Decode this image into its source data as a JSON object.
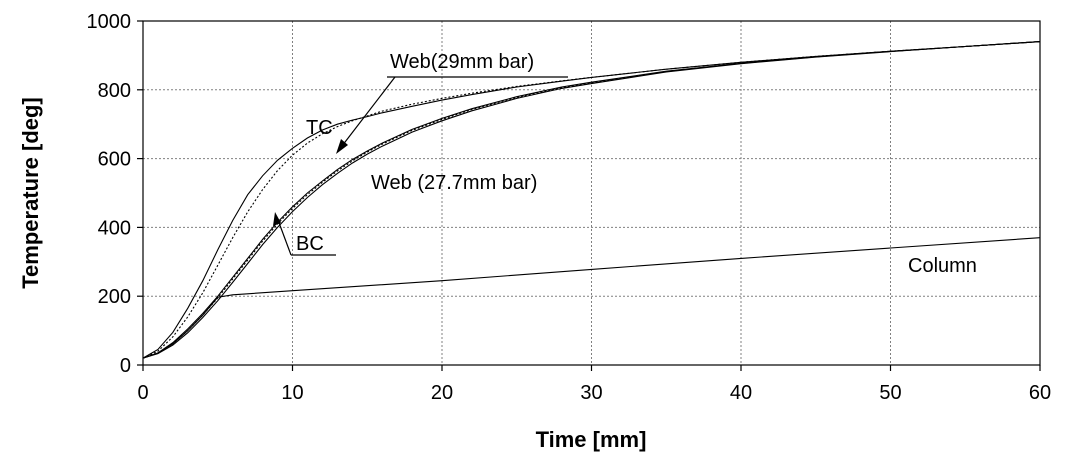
{
  "chart_data": {
    "type": "line",
    "title": "",
    "xlabel": "Time [mm]",
    "ylabel": "Temperature [deg]",
    "xlim": [
      0,
      60
    ],
    "ylim": [
      0,
      1000
    ],
    "xticks": [
      0,
      10,
      20,
      30,
      40,
      50,
      60
    ],
    "yticks": [
      0,
      200,
      400,
      600,
      800,
      1000
    ],
    "grid": true,
    "legend": "none",
    "series": [
      {
        "name": "TC",
        "style": "solid",
        "x": [
          0,
          1,
          2,
          3,
          4,
          5,
          6,
          7,
          8,
          9,
          10,
          11,
          12,
          13,
          14,
          15,
          16,
          18,
          20,
          22,
          25,
          28,
          30,
          35,
          40,
          45,
          50,
          55,
          60
        ],
        "y": [
          20,
          45,
          95,
          165,
          245,
          335,
          420,
          495,
          550,
          595,
          630,
          660,
          683,
          700,
          712,
          722,
          733,
          752,
          770,
          786,
          808,
          825,
          836,
          860,
          880,
          897,
          912,
          926,
          940
        ]
      },
      {
        "name": "",
        "style": "dotted",
        "x": [
          0,
          1,
          2,
          3,
          4,
          5,
          6,
          7,
          8,
          9,
          10,
          11,
          12,
          13,
          14,
          15,
          16,
          18,
          20,
          22,
          25,
          28,
          30,
          35,
          40,
          45,
          50,
          55,
          60
        ],
        "y": [
          20,
          40,
          82,
          140,
          210,
          290,
          370,
          445,
          510,
          565,
          610,
          645,
          672,
          693,
          710,
          724,
          738,
          758,
          775,
          790,
          810,
          826,
          836,
          860,
          880,
          897,
          912,
          926,
          940
        ]
      },
      {
        "name": "BC",
        "style": "solid",
        "x": [
          0,
          1,
          2,
          3,
          4,
          5,
          6,
          7,
          8,
          9,
          10,
          11,
          12,
          13,
          14,
          15,
          16,
          18,
          20,
          22,
          25,
          28,
          30,
          35,
          40,
          45,
          50,
          55,
          60
        ],
        "y": [
          20,
          35,
          65,
          105,
          150,
          200,
          255,
          310,
          365,
          415,
          460,
          500,
          535,
          568,
          597,
          622,
          645,
          685,
          717,
          745,
          780,
          808,
          822,
          854,
          877,
          896,
          912,
          926,
          940
        ]
      },
      {
        "name": "Web(29mm bar)",
        "style": "dotted",
        "x": [
          0,
          1,
          2,
          3,
          4,
          5,
          6,
          7,
          8,
          9,
          10,
          11,
          12,
          13,
          14,
          15,
          16,
          18,
          20,
          22,
          25,
          28,
          30,
          35,
          40,
          45,
          50,
          55,
          60
        ],
        "y": [
          20,
          35,
          62,
          100,
          145,
          195,
          250,
          305,
          360,
          410,
          455,
          495,
          531,
          564,
          593,
          619,
          642,
          682,
          714,
          743,
          778,
          806,
          820,
          853,
          877,
          896,
          912,
          926,
          940
        ]
      },
      {
        "name": "Web (27.7mm bar)",
        "style": "solid",
        "x": [
          0,
          1,
          2,
          3,
          4,
          5,
          6,
          7,
          8,
          9,
          10,
          11,
          12,
          13,
          14,
          15,
          16,
          18,
          20,
          22,
          25,
          28,
          30,
          35,
          40,
          45,
          50,
          55,
          60
        ],
        "y": [
          20,
          33,
          58,
          94,
          138,
          187,
          240,
          295,
          350,
          400,
          446,
          487,
          524,
          557,
          587,
          613,
          636,
          677,
          710,
          739,
          775,
          804,
          818,
          852,
          876,
          895,
          911,
          926,
          940
        ]
      },
      {
        "name": "Column",
        "style": "solid",
        "x": [
          0,
          1,
          2,
          3,
          4,
          5,
          6,
          10,
          20,
          30,
          40,
          50,
          60
        ],
        "y": [
          20,
          35,
          62,
          100,
          145,
          197,
          204,
          216,
          245,
          278,
          310,
          340,
          370
        ]
      }
    ],
    "annotations": [
      {
        "text": "TC",
        "x": 11.0,
        "y": 690
      },
      {
        "text": "Web(29mm bar)",
        "x": 16.8,
        "y": 880
      },
      {
        "text": "Web (27.7mm bar)",
        "x": 15.4,
        "y": 548
      },
      {
        "text": "BC",
        "x": 10.3,
        "y": 340
      },
      {
        "text": "Column",
        "x": 51.5,
        "y": 283
      }
    ]
  }
}
